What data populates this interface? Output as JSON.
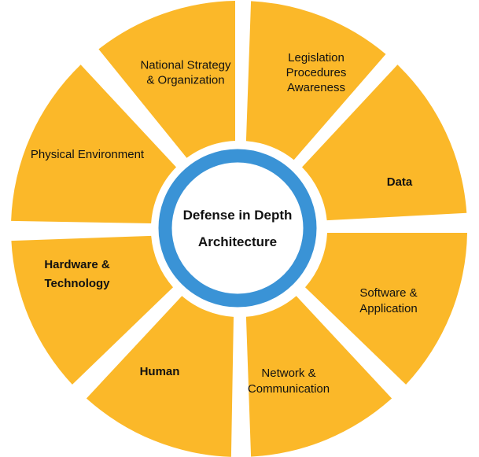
{
  "diagram": {
    "center": {
      "lines": [
        "Defense in Depth",
        "Architecture"
      ]
    },
    "colors": {
      "segment_fill": "#FBB829",
      "ring": "#3A93D6",
      "background": "#FFFFFF"
    },
    "segments": [
      {
        "id": "national-strategy",
        "lines": [
          "National Strategy",
          "& Organization"
        ],
        "bold": false
      },
      {
        "id": "legislation",
        "lines": [
          "Legislation",
          "Procedures",
          "Awareness"
        ],
        "bold": false
      },
      {
        "id": "data",
        "lines": [
          "Data"
        ],
        "bold": true
      },
      {
        "id": "software",
        "lines": [
          "Software &",
          "Application"
        ],
        "bold": false
      },
      {
        "id": "network",
        "lines": [
          "Network &",
          "Communication"
        ],
        "bold": false
      },
      {
        "id": "human",
        "lines": [
          "Human"
        ],
        "bold": true
      },
      {
        "id": "hardware",
        "lines": [
          "Hardware &",
          "Technology"
        ],
        "bold": true
      },
      {
        "id": "physical",
        "lines": [
          "Physical Environment"
        ],
        "bold": false
      }
    ]
  }
}
